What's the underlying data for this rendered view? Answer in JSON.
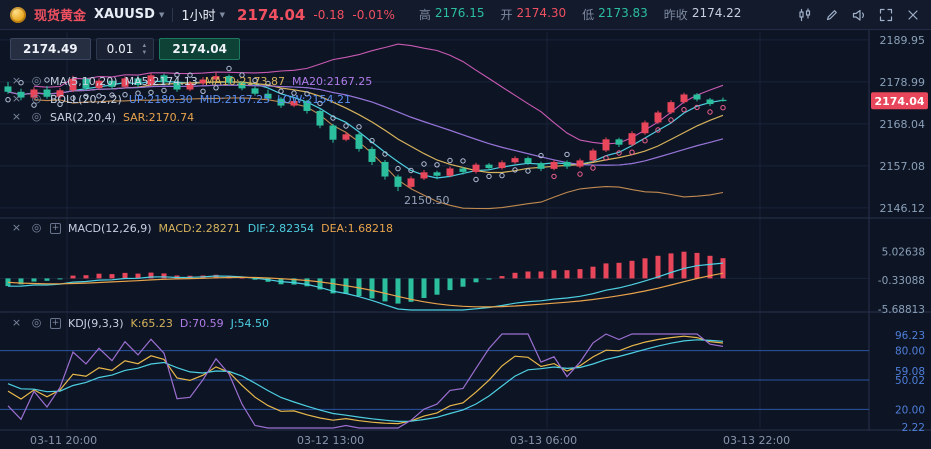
{
  "header": {
    "instrument_cn": "现货黄金",
    "symbol": "XAUUSD",
    "timeframe": "1小时",
    "price": "2174.04",
    "change": "-0.18",
    "change_pct": "-0.01%",
    "high_label": "高",
    "high": "2176.15",
    "open_label": "开",
    "open": "2174.30",
    "low_label": "低",
    "low": "2173.83",
    "prev_label": "昨收",
    "prev": "2174.22"
  },
  "trade_widget": {
    "sell_price": "2174.49",
    "qty": "0.01",
    "buy_price": "2174.04"
  },
  "indicators": {
    "ma": {
      "title": "MA(5,10,20)",
      "ma5": "MA5:2174.13",
      "ma10": "MA10:2173.87",
      "ma20": "MA20:2167.25"
    },
    "boll": {
      "title": "BOLL(20,2,2)",
      "up": "UP:2180.30",
      "mid": "MID:2167.25",
      "low": "LOW:2154.21"
    },
    "sar": {
      "title": "SAR(2,20,4)",
      "value": "SAR:2170.74"
    },
    "macd": {
      "title": "MACD(12,26,9)",
      "macd": "MACD:2.28271",
      "dif": "DIF:2.82354",
      "dea": "DEA:1.68218"
    },
    "kdj": {
      "title": "KDJ(9,3,3)",
      "k": "K:65.23",
      "d": "D:70.59",
      "j": "J:54.50"
    }
  },
  "axes": {
    "price_labels": [
      "2189.95",
      "2178.99",
      "2168.04",
      "2157.08",
      "2146.12"
    ],
    "price_badge": "2174.04",
    "macd_labels": [
      "5.02638",
      "-0.33088",
      "-5.68813"
    ],
    "kdj_labels": [
      "96.23",
      "80.00",
      "59.08",
      "50.02",
      "20.00",
      "2.22"
    ],
    "time_labels": [
      "03-11 20:00",
      "03-12 13:00",
      "03-13 06:00",
      "03-13 22:00"
    ],
    "low_marker": "2150.50"
  },
  "colors": {
    "up_candle": "#e8465a",
    "down_candle": "#2bbf9e",
    "badge_bg": "#e8465a",
    "price_text": "#f05060",
    "ma5": "#4dd0e1",
    "ma10": "#d6b35c",
    "ma20": "#9b6fd0",
    "boll_up": "#c85ab2",
    "boll_mid": "#5b8ff0",
    "boll_low": "#c08a50",
    "dif": "#4dd0e1",
    "dea": "#e8a34b",
    "k": "#e8b84b",
    "d": "#4dd0e1",
    "j": "#9b6fd0",
    "sar_up": "#b4c0d8",
    "sar_down": "#f0608e",
    "kdj_ref_line": "#2e5cb0",
    "grid": "#19243a",
    "separator": "#26324c",
    "axis_text": "#8aa0b8",
    "kdj_axis_text": "#4f7fd9",
    "time_text": "#8795ab"
  },
  "chart_data": {
    "type": "candlestick",
    "panels": [
      "price + MA(5,10,20) + BOLL(20,2,2) + SAR(2,20,4)",
      "MACD(12,26,9)",
      "KDJ(9,3,3)"
    ],
    "convention": "red = up, green = down",
    "visible_price_range": [
      2146.12,
      2189.95
    ],
    "macd_axis": [
      5.02638,
      -0.33088,
      -5.68813
    ],
    "kdj_axis": [
      96.23,
      80.0,
      50.02,
      20.0,
      2.22
    ],
    "time_ticks": [
      "03-11 20:00",
      "03-12 13:00",
      "03-13 06:00",
      "03-13 22:00"
    ],
    "low_annotation": 2150.5,
    "candles": [
      [
        2177.8,
        2179.0,
        2175.9,
        2176.4
      ],
      [
        2176.4,
        2177.2,
        2174.2,
        2174.9
      ],
      [
        2174.9,
        2177.6,
        2174.5,
        2177.0
      ],
      [
        2177.0,
        2177.9,
        2174.6,
        2175.1
      ],
      [
        2175.1,
        2177.4,
        2174.7,
        2176.8
      ],
      [
        2176.8,
        2180.6,
        2176.3,
        2179.8
      ],
      [
        2179.8,
        2180.2,
        2176.8,
        2177.4
      ],
      [
        2177.4,
        2179.9,
        2176.9,
        2179.3
      ],
      [
        2179.3,
        2179.8,
        2177.1,
        2177.7
      ],
      [
        2177.7,
        2180.4,
        2177.2,
        2179.9
      ],
      [
        2179.9,
        2180.6,
        2177.6,
        2178.2
      ],
      [
        2178.2,
        2181.3,
        2177.8,
        2180.7
      ],
      [
        2180.7,
        2181.1,
        2178.3,
        2178.9
      ],
      [
        2178.9,
        2179.3,
        2176.4,
        2177.0
      ],
      [
        2177.0,
        2179.2,
        2176.6,
        2178.6
      ],
      [
        2178.6,
        2180.2,
        2178.1,
        2179.6
      ],
      [
        2179.6,
        2181.5,
        2179.0,
        2180.5
      ],
      [
        2180.5,
        2180.9,
        2178.2,
        2178.8
      ],
      [
        2178.8,
        2179.2,
        2176.8,
        2177.3
      ],
      [
        2177.3,
        2177.8,
        2175.4,
        2175.9
      ],
      [
        2175.9,
        2177.0,
        2174.1,
        2174.6
      ],
      [
        2174.6,
        2175.0,
        2172.2,
        2172.8
      ],
      [
        2172.8,
        2174.5,
        2172.4,
        2174.0
      ],
      [
        2174.0,
        2174.3,
        2170.7,
        2171.4
      ],
      [
        2171.4,
        2171.8,
        2166.9,
        2167.6
      ],
      [
        2167.6,
        2168.0,
        2163.1,
        2163.9
      ],
      [
        2163.9,
        2165.9,
        2163.5,
        2165.3
      ],
      [
        2165.3,
        2165.7,
        2160.8,
        2161.5
      ],
      [
        2161.5,
        2162.1,
        2157.3,
        2158.1
      ],
      [
        2158.1,
        2158.6,
        2153.5,
        2154.3
      ],
      [
        2154.3,
        2154.8,
        2150.5,
        2151.6
      ],
      [
        2151.6,
        2154.3,
        2151.2,
        2153.8
      ],
      [
        2153.8,
        2156.0,
        2153.4,
        2155.4
      ],
      [
        2155.4,
        2155.8,
        2153.6,
        2154.5
      ],
      [
        2154.5,
        2156.9,
        2154.1,
        2156.4
      ],
      [
        2156.4,
        2156.8,
        2154.8,
        2155.5
      ],
      [
        2155.5,
        2157.9,
        2155.1,
        2157.4
      ],
      [
        2157.4,
        2157.8,
        2155.9,
        2156.5
      ],
      [
        2156.5,
        2158.5,
        2156.1,
        2158.0
      ],
      [
        2158.0,
        2159.6,
        2157.6,
        2159.1
      ],
      [
        2159.1,
        2159.5,
        2157.3,
        2157.8
      ],
      [
        2157.8,
        2158.2,
        2155.7,
        2156.3
      ],
      [
        2156.3,
        2158.6,
        2155.9,
        2158.1
      ],
      [
        2158.1,
        2158.5,
        2156.3,
        2156.9
      ],
      [
        2156.9,
        2159.0,
        2156.5,
        2158.5
      ],
      [
        2158.5,
        2161.6,
        2158.1,
        2161.1
      ],
      [
        2161.1,
        2164.5,
        2160.7,
        2164.0
      ],
      [
        2164.0,
        2164.4,
        2162.0,
        2162.6
      ],
      [
        2162.6,
        2166.1,
        2162.2,
        2165.6
      ],
      [
        2165.6,
        2168.9,
        2165.2,
        2168.4
      ],
      [
        2168.4,
        2171.5,
        2168.0,
        2171.0
      ],
      [
        2171.0,
        2174.2,
        2170.6,
        2173.7
      ],
      [
        2173.7,
        2176.15,
        2173.3,
        2175.7
      ],
      [
        2175.7,
        2176.1,
        2173.9,
        2174.4
      ],
      [
        2174.4,
        2174.8,
        2172.7,
        2173.2
      ],
      [
        2174.3,
        2174.9,
        2173.83,
        2174.04
      ]
    ]
  }
}
